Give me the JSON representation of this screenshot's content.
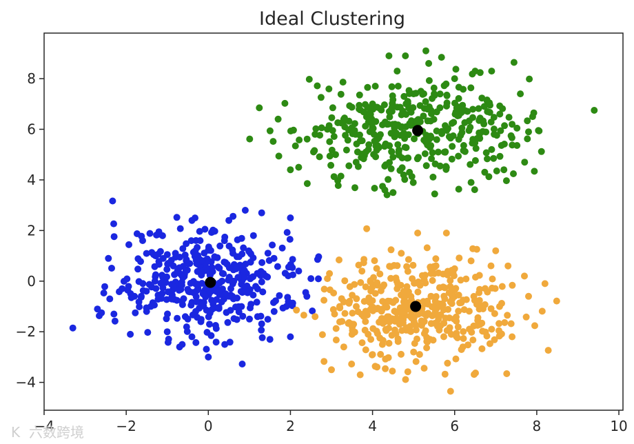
{
  "chart_data": {
    "type": "scatter",
    "title": "Ideal Clustering",
    "xlabel": "",
    "ylabel": "",
    "xlim": [
      -4,
      10.1
    ],
    "ylim": [
      -5.1,
      9.8
    ],
    "xticks": [
      -4,
      -2,
      0,
      2,
      4,
      6,
      8,
      10
    ],
    "xtick_labels": [
      "−4",
      "−2",
      "0",
      "2",
      "4",
      "6",
      "8",
      "10"
    ],
    "yticks": [
      -4,
      -2,
      0,
      2,
      4,
      6,
      8
    ],
    "ytick_labels": [
      "−4",
      "−2",
      "0",
      "2",
      "4",
      "6",
      "8"
    ],
    "grid": false,
    "legend": "none",
    "series": [
      {
        "color": "#1a27e0",
        "center": [
          0,
          0
        ],
        "spread": [
          1.05,
          1.05
        ],
        "count": 400,
        "points": [
          [
            -3.3,
            -1.85
          ],
          [
            -2.7,
            -1.1
          ],
          [
            -2.4,
            -0.7
          ],
          [
            -2.3,
            -1.3
          ],
          [
            -1.9,
            -2.1
          ],
          [
            -1.6,
            1.6
          ],
          [
            -1.4,
            -1.0
          ],
          [
            -1.3,
            0.0
          ],
          [
            -1.0,
            -2.0
          ],
          [
            -0.7,
            -2.6
          ],
          [
            -0.4,
            2.4
          ],
          [
            -0.4,
            -2.2
          ],
          [
            0.0,
            -3.0
          ],
          [
            0.4,
            -2.5
          ],
          [
            0.5,
            2.4
          ],
          [
            0.9,
            2.8
          ],
          [
            1.3,
            2.7
          ],
          [
            1.5,
            -2.3
          ],
          [
            2.0,
            2.5
          ],
          [
            2.0,
            -2.2
          ],
          [
            2.4,
            -0.6
          ],
          [
            2.5,
            0.1
          ],
          [
            2.2,
            0.4
          ],
          [
            1.9,
            -1.0
          ],
          [
            1.2,
            -1.4
          ],
          [
            1.1,
            1.8
          ],
          [
            -0.2,
            1.6
          ],
          [
            -1.1,
            0.9
          ],
          [
            -1.8,
            -0.6
          ],
          [
            -2.1,
            -0.3
          ],
          [
            0.6,
            1.1
          ],
          [
            1.6,
            0.9
          ],
          [
            1.4,
            0.2
          ],
          [
            -0.8,
            1.1
          ],
          [
            -0.5,
            -1.5
          ]
        ]
      },
      {
        "color": "#2d8a13",
        "center": [
          5.05,
          5.9
        ],
        "spread": [
          1.45,
          0.95
        ],
        "count": 400,
        "points": [
          [
            1.7,
            6.4
          ],
          [
            2.2,
            4.5
          ],
          [
            2.0,
            4.4
          ],
          [
            2.6,
            5.8
          ],
          [
            3.3,
            6.4
          ],
          [
            3.6,
            4.7
          ],
          [
            4.3,
            3.6
          ],
          [
            4.4,
            8.9
          ],
          [
            4.6,
            8.3
          ],
          [
            4.8,
            8.9
          ],
          [
            5.3,
            9.1
          ],
          [
            5.5,
            7.4
          ],
          [
            6.0,
            8.0
          ],
          [
            6.5,
            8.3
          ],
          [
            6.9,
            8.3
          ],
          [
            6.4,
            3.9
          ],
          [
            7.2,
            4.4
          ],
          [
            7.9,
            6.5
          ],
          [
            7.8,
            5.9
          ],
          [
            7.6,
            7.4
          ],
          [
            9.4,
            6.75
          ],
          [
            4.5,
            3.5
          ],
          [
            5.8,
            4.5
          ],
          [
            3.1,
            5.0
          ],
          [
            6.9,
            5.2
          ],
          [
            4.0,
            7.0
          ],
          [
            5.0,
            7.4
          ],
          [
            6.2,
            6.8
          ],
          [
            7.1,
            6.6
          ],
          [
            3.9,
            5.2
          ],
          [
            4.9,
            4.3
          ],
          [
            5.6,
            5.1
          ],
          [
            6.6,
            5.7
          ],
          [
            2.9,
            6.0
          ],
          [
            7.4,
            6.2
          ]
        ]
      },
      {
        "color": "#f0a93c",
        "center": [
          5.05,
          -1.05
        ],
        "spread": [
          1.1,
          1.05
        ],
        "count": 400,
        "points": [
          [
            2.6,
            -1.4
          ],
          [
            2.9,
            0.1
          ],
          [
            3.0,
            -3.5
          ],
          [
            3.3,
            -2.6
          ],
          [
            3.7,
            -3.7
          ],
          [
            4.7,
            1.1
          ],
          [
            5.1,
            1.9
          ],
          [
            5.8,
            1.9
          ],
          [
            7.0,
            1.2
          ],
          [
            7.3,
            0.6
          ],
          [
            7.7,
            0.2
          ],
          [
            8.2,
            -0.1
          ],
          [
            7.8,
            -0.6
          ],
          [
            7.4,
            -2.2
          ],
          [
            6.9,
            -1.9
          ],
          [
            6.2,
            -2.6
          ],
          [
            5.9,
            -4.35
          ],
          [
            4.0,
            -2.9
          ],
          [
            3.5,
            -2.1
          ],
          [
            3.2,
            -1.0
          ],
          [
            4.1,
            0.5
          ],
          [
            6.4,
            0.8
          ],
          [
            6.6,
            -1.1
          ],
          [
            4.3,
            -1.6
          ],
          [
            5.4,
            -2.3
          ],
          [
            5.5,
            0.3
          ],
          [
            4.6,
            -0.3
          ],
          [
            6.0,
            -0.6
          ],
          [
            3.8,
            -0.8
          ],
          [
            5.0,
            -2.8
          ]
        ]
      },
      {
        "color": "#000000",
        "points": [
          [
            0.05,
            -0.05
          ],
          [
            5.1,
            5.95
          ],
          [
            5.05,
            -1.0
          ]
        ]
      }
    ]
  },
  "watermark": {
    "logo": "K",
    "text": "六数跨境"
  }
}
